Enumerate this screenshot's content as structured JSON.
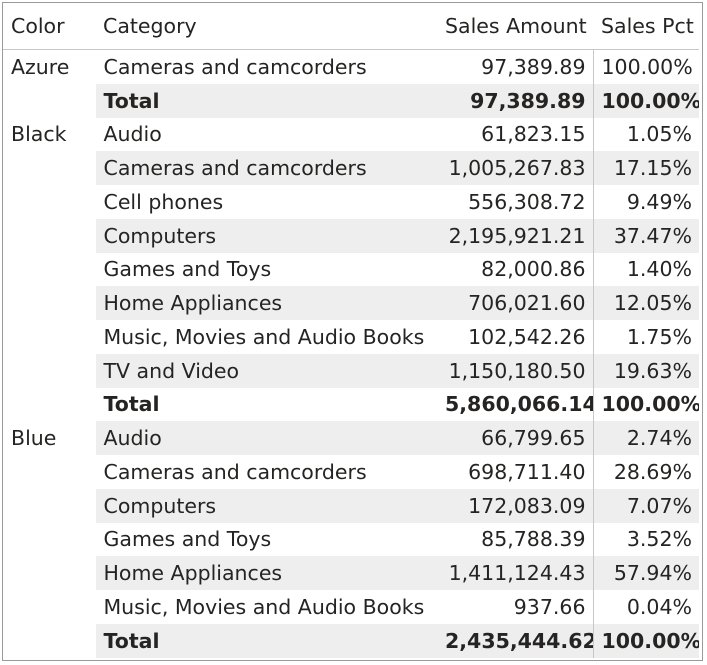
{
  "headers": {
    "color": "Color",
    "category": "Category",
    "amount": "Sales Amount",
    "pct": "Sales Pct"
  },
  "rows": [
    {
      "color": "Azure",
      "category": "Cameras and camcorders",
      "amount": "97,389.89",
      "pct": "100.00%"
    },
    {
      "color": "",
      "category": "Total",
      "amount": "97,389.89",
      "pct": "100.00%"
    },
    {
      "color": "Black",
      "category": "Audio",
      "amount": "61,823.15",
      "pct": "1.05%"
    },
    {
      "color": "",
      "category": "Cameras and camcorders",
      "amount": "1,005,267.83",
      "pct": "17.15%"
    },
    {
      "color": "",
      "category": "Cell phones",
      "amount": "556,308.72",
      "pct": "9.49%"
    },
    {
      "color": "",
      "category": "Computers",
      "amount": "2,195,921.21",
      "pct": "37.47%"
    },
    {
      "color": "",
      "category": "Games and Toys",
      "amount": "82,000.86",
      "pct": "1.40%"
    },
    {
      "color": "",
      "category": "Home Appliances",
      "amount": "706,021.60",
      "pct": "12.05%"
    },
    {
      "color": "",
      "category": "Music, Movies and Audio Books",
      "amount": "102,542.26",
      "pct": "1.75%"
    },
    {
      "color": "",
      "category": "TV and Video",
      "amount": "1,150,180.50",
      "pct": "19.63%"
    },
    {
      "color": "",
      "category": "Total",
      "amount": "5,860,066.14",
      "pct": "100.00%"
    },
    {
      "color": "Blue",
      "category": "Audio",
      "amount": "66,799.65",
      "pct": "2.74%"
    },
    {
      "color": "",
      "category": "Cameras and camcorders",
      "amount": "698,711.40",
      "pct": "28.69%"
    },
    {
      "color": "",
      "category": "Computers",
      "amount": "172,083.09",
      "pct": "7.07%"
    },
    {
      "color": "",
      "category": "Games and Toys",
      "amount": "85,788.39",
      "pct": "3.52%"
    },
    {
      "color": "",
      "category": "Home Appliances",
      "amount": "1,411,124.43",
      "pct": "57.94%"
    },
    {
      "color": "",
      "category": "Music, Movies and Audio Books",
      "amount": "937.66",
      "pct": "0.04%"
    },
    {
      "color": "",
      "category": "Total",
      "amount": "2,435,444.62",
      "pct": "100.00%"
    }
  ]
}
